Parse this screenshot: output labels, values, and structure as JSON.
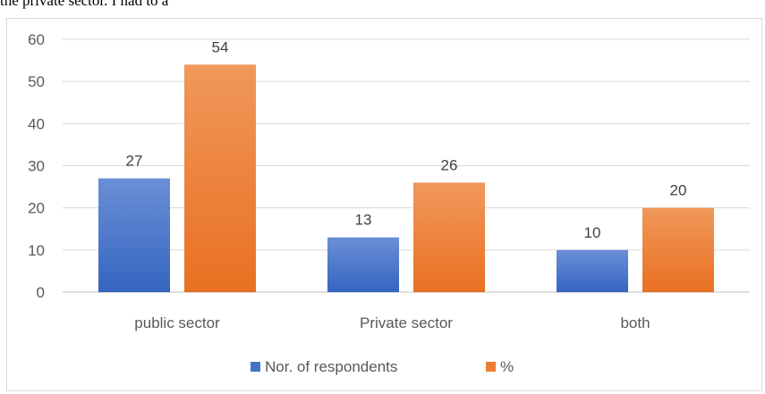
{
  "caption": "the private sector. I had to a",
  "chart_data": {
    "type": "bar",
    "categories": [
      "public sector",
      "Private sector",
      "both"
    ],
    "series": [
      {
        "name": "Nor. of respondents",
        "values": [
          27,
          13,
          10
        ],
        "color": "#4472c4"
      },
      {
        "name": "%",
        "values": [
          54,
          26,
          20
        ],
        "color": "#ed7d31"
      }
    ],
    "ylim": [
      0,
      60
    ],
    "yticks": [
      0,
      10,
      20,
      30,
      40,
      50,
      60
    ],
    "grid": true,
    "legend": "bottom",
    "data_labels": true
  }
}
